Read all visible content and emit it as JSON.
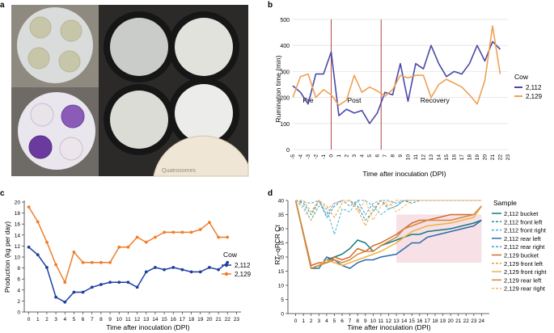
{
  "panel_labels": {
    "a": "a",
    "b": "b",
    "c": "c",
    "d": "d"
  },
  "photo": {
    "plate_text": "Quatrosomes"
  },
  "colors": {
    "cow_2112": "#4a4aa6",
    "cow_2129": "#f0a052",
    "phase_line": "#b34747",
    "prod_2112": "#1f3fa0",
    "prod_2129": "#f07d28",
    "recovery_shade": "#f7e0e6"
  },
  "chart_data": [
    {
      "id": "b",
      "type": "line",
      "title": "",
      "xlabel": "Time after inoculation (DPI)",
      "ylabel": "Rumination time (min)",
      "ylim": [
        0,
        500
      ],
      "yticks": [
        0,
        100,
        200,
        300,
        400,
        500
      ],
      "x": [
        -5,
        -4,
        -3,
        -2,
        -1,
        0,
        1,
        2,
        3,
        4,
        5,
        6,
        7,
        8,
        9,
        10,
        11,
        12,
        13,
        14,
        15,
        16,
        17,
        18,
        19,
        20,
        21,
        22,
        23
      ],
      "xtick_labels": [
        "-5",
        "-4",
        "-3",
        "-2",
        "-1",
        "0",
        "1",
        "2",
        "3",
        "4",
        "5",
        "6",
        "7",
        "8",
        "9",
        "10",
        "11",
        "12",
        "13",
        "14",
        "15",
        "16",
        "17",
        "18",
        "19",
        "20",
        "21",
        "22",
        "23"
      ],
      "phase_lines": [
        0,
        6.5
      ],
      "phases": [
        {
          "label": "Pre",
          "x": -3
        },
        {
          "label": "Post",
          "x": 3
        },
        {
          "label": "Recovery",
          "x": 13.5
        }
      ],
      "legend_title": "Cow",
      "series": [
        {
          "name": "2,112",
          "values": [
            245,
            220,
            175,
            290,
            290,
            375,
            130,
            155,
            140,
            150,
            100,
            140,
            220,
            210,
            330,
            185,
            330,
            310,
            400,
            330,
            280,
            300,
            290,
            330,
            400,
            340,
            415,
            385,
            null
          ]
        },
        {
          "name": "2,129",
          "values": [
            200,
            280,
            290,
            200,
            230,
            210,
            170,
            190,
            285,
            220,
            240,
            225,
            205,
            230,
            285,
            275,
            285,
            285,
            200,
            250,
            270,
            255,
            240,
            210,
            175,
            265,
            475,
            290,
            null
          ]
        }
      ]
    },
    {
      "id": "c",
      "type": "line",
      "xlabel": "Time after inoculation (DPI)",
      "ylabel": "Production (kg per day)",
      "ylim": [
        0,
        20
      ],
      "yticks": [
        0,
        2,
        4,
        6,
        8,
        10,
        12,
        14,
        16,
        18,
        20
      ],
      "x": [
        0,
        1,
        2,
        3,
        4,
        5,
        6,
        7,
        8,
        9,
        10,
        11,
        12,
        13,
        14,
        15,
        16,
        17,
        18,
        19,
        20,
        21,
        22,
        23
      ],
      "xtick_labels": [
        "0",
        "1",
        "2",
        "3",
        "4",
        "5",
        "6",
        "7",
        "8",
        "9",
        "10",
        "11",
        "12",
        "13",
        "14",
        "15",
        "16",
        "17",
        "18",
        "19",
        "20",
        "21",
        "22",
        "23"
      ],
      "legend_title": "Cow",
      "series": [
        {
          "name": "2,112",
          "values": [
            11.8,
            10.4,
            8.1,
            2.7,
            1.8,
            3.6,
            3.6,
            4.5,
            5.0,
            5.4,
            5.4,
            5.4,
            4.5,
            7.3,
            8.1,
            7.7,
            8.1,
            7.7,
            7.3,
            7.3,
            8.1,
            7.7,
            9.0,
            null
          ]
        },
        {
          "name": "2,129",
          "values": [
            19.1,
            16.4,
            12.7,
            8.6,
            5.4,
            10.9,
            9.0,
            9.0,
            9.0,
            9.0,
            11.8,
            11.8,
            13.6,
            12.7,
            13.6,
            14.5,
            14.5,
            14.5,
            14.5,
            15.0,
            16.3,
            13.6,
            13.6,
            null
          ]
        }
      ]
    },
    {
      "id": "d",
      "type": "line",
      "xlabel": "Time after inoculation (DPI)",
      "ylabel": "RT–qPCR Ct",
      "ylim": [
        0,
        40
      ],
      "yticks": [
        0,
        5,
        10,
        15,
        20,
        25,
        30,
        35,
        40
      ],
      "xlim": [
        -1,
        25
      ],
      "xticks": [
        0,
        1,
        2,
        3,
        4,
        5,
        6,
        7,
        8,
        9,
        10,
        11,
        12,
        13,
        14,
        15,
        16,
        17,
        18,
        19,
        20,
        21,
        22,
        23,
        24
      ],
      "xtick_labels": [
        "0",
        "1",
        "2",
        "3",
        "4",
        "5",
        "6",
        "7",
        "8",
        "9",
        "10",
        "11",
        "12",
        "13",
        "14",
        "15",
        "16",
        "17",
        "18",
        "19",
        "20",
        "21",
        "22",
        "23",
        "24"
      ],
      "shaded_x_range": [
        13,
        24
      ],
      "shaded_y_range": [
        18,
        35
      ],
      "legend_title": "Sample",
      "series": [
        {
          "name": "2,112 bucket",
          "color": "#137a7f",
          "dash": false,
          "x": [
            0,
            2,
            3,
            4,
            5,
            6,
            7,
            8,
            9,
            10,
            11,
            13,
            14,
            15,
            16,
            17,
            20,
            23,
            24
          ],
          "values": [
            40,
            16,
            17,
            19,
            20,
            21,
            23,
            26,
            25,
            22,
            24,
            26,
            27,
            28,
            28,
            29,
            30,
            32,
            33
          ]
        },
        {
          "name": "2,112 front left",
          "color": "#1d8fa8",
          "dash": true,
          "x": [
            0,
            1,
            2,
            3,
            4,
            5,
            6,
            7,
            8,
            9,
            10,
            11,
            12,
            13,
            14,
            15,
            16,
            17,
            18,
            20,
            23,
            24
          ],
          "values": [
            40,
            39,
            35,
            40,
            34,
            38,
            40,
            40,
            38,
            33,
            36,
            40,
            37,
            38,
            40,
            39,
            40,
            40,
            40,
            40,
            40,
            40
          ]
        },
        {
          "name": "2,112 front right",
          "color": "#3fb3d6",
          "dash": true,
          "x": [
            0,
            1,
            2,
            3,
            4,
            5,
            6,
            7,
            8,
            9,
            10,
            11,
            12,
            13,
            14,
            15,
            16,
            17,
            18,
            20,
            23,
            24
          ],
          "values": [
            40,
            38,
            33,
            38,
            37,
            28,
            37,
            36,
            40,
            40,
            38,
            35,
            37,
            38,
            40,
            40,
            40,
            40,
            40,
            40,
            40,
            40
          ]
        },
        {
          "name": "2,112 rear left",
          "color": "#2d6cae",
          "dash": false,
          "x": [
            0,
            2,
            3,
            4,
            5,
            6,
            7,
            8,
            9,
            10,
            11,
            13,
            14,
            15,
            16,
            17,
            20,
            23,
            24
          ],
          "values": [
            40,
            16,
            16,
            20,
            19,
            17,
            16,
            18,
            19,
            19,
            20,
            21,
            23,
            25,
            25,
            27,
            29,
            31,
            33
          ]
        },
        {
          "name": "2,112 rear right",
          "color": "#4a9bd8",
          "dash": true,
          "x": [
            0,
            2,
            3,
            4,
            5,
            6,
            7,
            8,
            9,
            10,
            11,
            12,
            13,
            14,
            15,
            16,
            17,
            18,
            20,
            23,
            24
          ],
          "values": [
            40,
            39,
            40,
            35,
            39,
            40,
            38,
            40,
            35,
            39,
            40,
            40,
            39,
            40,
            40,
            40,
            40,
            40,
            40,
            40,
            40
          ]
        },
        {
          "name": "2,129 bucket",
          "color": "#d66a2a",
          "dash": false,
          "x": [
            0,
            2,
            3,
            4,
            5,
            6,
            7,
            8,
            9,
            10,
            11,
            13,
            14,
            15,
            16,
            17,
            20,
            23,
            24
          ],
          "values": [
            40,
            17,
            18,
            18,
            20,
            19,
            20,
            23,
            22,
            24,
            25,
            28,
            30,
            32,
            33,
            33,
            35,
            35,
            38
          ]
        },
        {
          "name": "2,129 front left",
          "color": "#e89a3a",
          "dash": true,
          "x": [
            0,
            1,
            2,
            3,
            4,
            5,
            6,
            7,
            8,
            9,
            10,
            11,
            12,
            13,
            14,
            15,
            16,
            17,
            18,
            20,
            23,
            24
          ],
          "values": [
            40,
            40,
            36,
            40,
            38,
            34,
            39,
            40,
            37,
            31,
            37,
            40,
            38,
            40,
            40,
            40,
            40,
            40,
            40,
            40,
            40,
            40
          ]
        },
        {
          "name": "2,129 front right",
          "color": "#f2b144",
          "dash": false,
          "x": [
            0,
            2,
            3,
            4,
            5,
            6,
            7,
            8,
            9,
            10,
            11,
            13,
            14,
            15,
            16,
            17,
            20,
            23,
            24
          ],
          "values": [
            40,
            16,
            17,
            19,
            18,
            17,
            18,
            19,
            20,
            21,
            22,
            25,
            27,
            29,
            30,
            31,
            32,
            34,
            38
          ]
        },
        {
          "name": "2,129 rear left",
          "color": "#cf8a3e",
          "dash": false,
          "x": [
            0,
            2,
            3,
            4,
            5,
            6,
            7,
            8,
            9,
            10,
            11,
            13,
            14,
            15,
            16,
            17,
            20,
            23,
            24
          ],
          "values": [
            40,
            16,
            17,
            18,
            19,
            18,
            19,
            21,
            22,
            22,
            24,
            27,
            30,
            31,
            32,
            33,
            33,
            35,
            38
          ]
        },
        {
          "name": "2,129 rear right",
          "color": "#f5b35e",
          "dash": true,
          "x": [
            0,
            1,
            2,
            3,
            4,
            5,
            6,
            7,
            8,
            9,
            10,
            11,
            12,
            13,
            14,
            15,
            16,
            17,
            18,
            20,
            23,
            24
          ],
          "values": [
            40,
            37,
            33,
            40,
            37,
            39,
            40,
            40,
            36,
            40,
            33,
            38,
            40,
            36,
            38,
            40,
            40,
            40,
            40,
            40,
            40,
            40
          ]
        }
      ]
    }
  ]
}
